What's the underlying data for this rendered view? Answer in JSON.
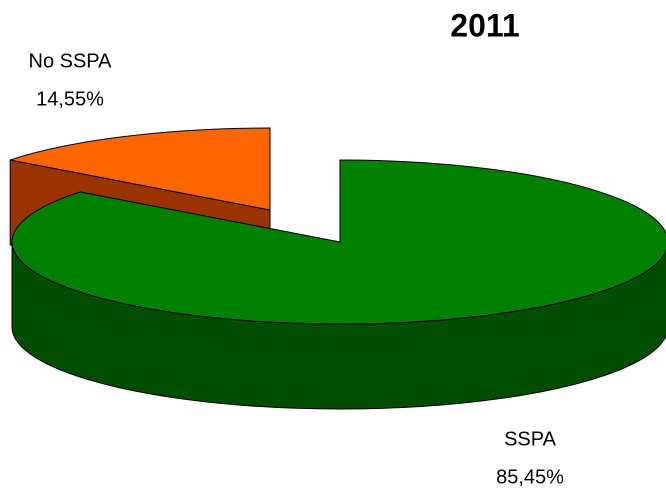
{
  "chart_data": {
    "type": "pie",
    "title": "2011",
    "categories": [
      "SSPA",
      "No SSPA"
    ],
    "values": [
      85.45,
      14.55
    ],
    "value_labels": [
      "85,45%",
      "14,55%"
    ],
    "colors": [
      "#008000",
      "#ff6600"
    ],
    "side_colors": [
      "#004d00",
      "#993300"
    ]
  }
}
